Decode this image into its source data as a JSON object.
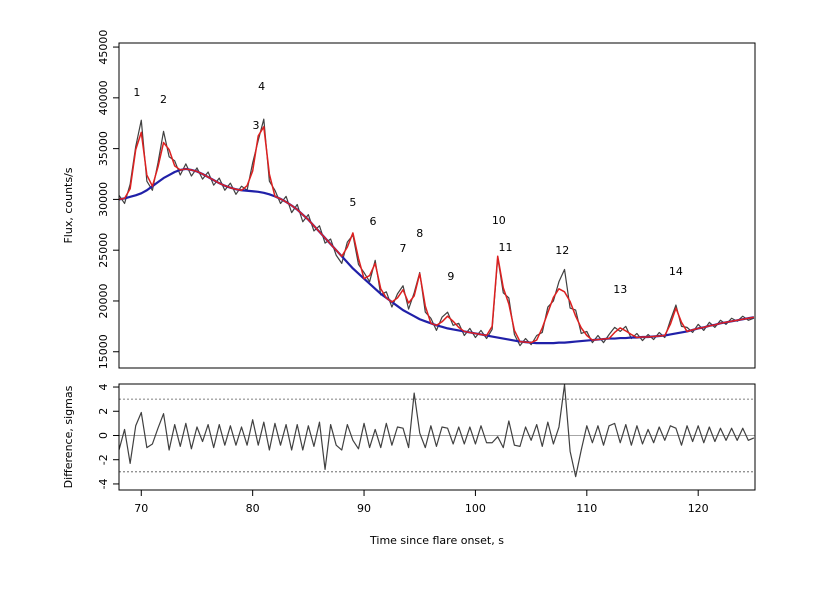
{
  "chart_data": [
    {
      "type": "line",
      "ylabel": "Flux, counts/s",
      "xlim": [
        68,
        125.1
      ],
      "ylim": [
        13400,
        45400
      ],
      "yticks": [
        15000,
        20000,
        25000,
        30000,
        35000,
        40000,
        45000
      ],
      "x": [
        68,
        68.5,
        69,
        69.5,
        70,
        70.5,
        71,
        71.5,
        72,
        72.5,
        73,
        73.5,
        74,
        74.5,
        75,
        75.5,
        76,
        76.5,
        77,
        77.5,
        78,
        78.5,
        79,
        79.5,
        80,
        80.5,
        81,
        81.5,
        82,
        82.5,
        83,
        83.5,
        84,
        84.5,
        85,
        85.5,
        86,
        86.5,
        87,
        87.5,
        88,
        88.5,
        89,
        89.5,
        90,
        90.5,
        91,
        91.5,
        92,
        92.5,
        93,
        93.5,
        94,
        94.5,
        95,
        95.5,
        96,
        96.5,
        97,
        97.5,
        98,
        98.5,
        99,
        99.5,
        100,
        100.5,
        101,
        101.5,
        102,
        102.5,
        103,
        103.5,
        104,
        104.5,
        105,
        105.5,
        106,
        106.5,
        107,
        107.5,
        108,
        108.5,
        109,
        109.5,
        110,
        110.5,
        111,
        111.5,
        112,
        112.5,
        113,
        113.5,
        114,
        114.5,
        115,
        115.5,
        116,
        116.5,
        117,
        117.5,
        118,
        118.5,
        119,
        119.5,
        120,
        120.5,
        121,
        121.5,
        122,
        122.5,
        123,
        123.5,
        124,
        124.5,
        125
      ],
      "series": [
        {
          "color": "#404040",
          "width": 1.2,
          "values": [
            30400,
            29600,
            31500,
            35200,
            37800,
            31800,
            30900,
            33600,
            36700,
            34200,
            33800,
            32400,
            33500,
            32300,
            33100,
            32000,
            32700,
            31400,
            32100,
            30900,
            31600,
            30500,
            31300,
            30900,
            33600,
            35800,
            37900,
            31800,
            30900,
            29600,
            30300,
            28700,
            29500,
            27800,
            28500,
            26900,
            27400,
            25700,
            26100,
            24500,
            23700,
            25800,
            26500,
            23600,
            22800,
            21900,
            24000,
            20600,
            20900,
            19400,
            20700,
            21500,
            19200,
            20800,
            22800,
            18900,
            18300,
            17100,
            18400,
            18900,
            17600,
            17800,
            16600,
            17300,
            16400,
            17100,
            16300,
            17200,
            24300,
            20800,
            20300,
            16700,
            15600,
            16300,
            15700,
            16600,
            16900,
            19400,
            20000,
            21900,
            23100,
            19300,
            19100,
            16800,
            17000,
            15900,
            16600,
            15900,
            16700,
            17400,
            17000,
            17500,
            16300,
            16800,
            16100,
            16700,
            16200,
            16900,
            16400,
            18100,
            19600,
            17500,
            17400,
            16900,
            17700,
            17100,
            17900,
            17400,
            18100,
            17700,
            18300,
            18000,
            18500,
            18100,
            18300
          ]
        },
        {
          "color": "#2020a8",
          "width": 2.2,
          "values": [
            30000,
            30100,
            30250,
            30400,
            30600,
            30900,
            31300,
            31700,
            32100,
            32400,
            32700,
            32900,
            33000,
            32900,
            32750,
            32500,
            32200,
            31900,
            31600,
            31350,
            31150,
            31000,
            30900,
            30850,
            30800,
            30750,
            30650,
            30500,
            30300,
            30050,
            29750,
            29400,
            29000,
            28500,
            28000,
            27400,
            26800,
            26200,
            25600,
            25000,
            24400,
            23800,
            23200,
            22700,
            22200,
            21700,
            21200,
            20700,
            20300,
            19900,
            19500,
            19100,
            18800,
            18500,
            18200,
            18000,
            17800,
            17600,
            17450,
            17300,
            17200,
            17100,
            17000,
            16900,
            16800,
            16700,
            16600,
            16500,
            16400,
            16300,
            16200,
            16100,
            16000,
            15950,
            15900,
            15850,
            15850,
            15850,
            15850,
            15900,
            15900,
            15950,
            16000,
            16050,
            16100,
            16150,
            16200,
            16250,
            16300,
            16300,
            16350,
            16350,
            16400,
            16400,
            16450,
            16450,
            16500,
            16550,
            16600,
            16700,
            16800,
            16900,
            17000,
            17150,
            17300,
            17400,
            17550,
            17650,
            17800,
            17900,
            18000,
            18100,
            18200,
            18300,
            18400
          ]
        },
        {
          "color": "#dd2020",
          "width": 1.5,
          "values": [
            30000,
            30100,
            31050,
            34900,
            36600,
            32400,
            31300,
            33200,
            35600,
            34900,
            33300,
            32900,
            33000,
            32900,
            32750,
            32500,
            32200,
            31900,
            31600,
            31350,
            31150,
            31000,
            30900,
            31350,
            32800,
            36250,
            37150,
            32500,
            30300,
            30050,
            29750,
            29400,
            29000,
            28500,
            28000,
            27400,
            26800,
            26200,
            25600,
            25000,
            24400,
            25300,
            26700,
            24200,
            22200,
            22500,
            23700,
            21200,
            20300,
            19900,
            20300,
            21100,
            19800,
            20500,
            22700,
            19500,
            17800,
            17600,
            17950,
            18500,
            18000,
            17400,
            17000,
            16900,
            16800,
            16700,
            16600,
            17500,
            24400,
            21300,
            19700,
            17100,
            16000,
            15950,
            15900,
            16150,
            17350,
            18850,
            20350,
            21200,
            20900,
            19950,
            18500,
            17350,
            16600,
            16150,
            16200,
            16250,
            16300,
            16900,
            17350,
            17050,
            16700,
            16400,
            16450,
            16450,
            16500,
            16550,
            16600,
            17700,
            19300,
            17900,
            17000,
            17150,
            17300,
            17400,
            17550,
            17650,
            17800,
            17900,
            18000,
            18100,
            18200,
            18300,
            18400
          ]
        }
      ],
      "annotations": [
        {
          "text": "1",
          "x": 69.6,
          "y": 40180
        },
        {
          "text": "2",
          "x": 72.0,
          "y": 39490
        },
        {
          "text": "3",
          "x": 80.3,
          "y": 36930
        },
        {
          "text": "4",
          "x": 80.8,
          "y": 40770
        },
        {
          "text": "5",
          "x": 89.0,
          "y": 29350
        },
        {
          "text": "6",
          "x": 90.8,
          "y": 27480
        },
        {
          "text": "7",
          "x": 93.5,
          "y": 24830
        },
        {
          "text": "8",
          "x": 95.0,
          "y": 26300
        },
        {
          "text": "9",
          "x": 97.8,
          "y": 22070
        },
        {
          "text": "10",
          "x": 102.1,
          "y": 27580
        },
        {
          "text": "11",
          "x": 102.7,
          "y": 24930
        },
        {
          "text": "12",
          "x": 107.8,
          "y": 24630
        },
        {
          "text": "13",
          "x": 113.0,
          "y": 20790
        },
        {
          "text": "14",
          "x": 118.0,
          "y": 22560
        }
      ]
    },
    {
      "type": "line",
      "ylabel": "Difference, sigmas",
      "xlabel": "Time since flare onset, s",
      "xlim": [
        68,
        125.1
      ],
      "ylim": [
        -4.5,
        4.25
      ],
      "xticks": [
        70,
        80,
        90,
        100,
        110,
        120
      ],
      "yticks": [
        -4,
        -2,
        0,
        2,
        4
      ],
      "hlines": [
        {
          "value": -3,
          "dash": true
        },
        {
          "value": 0,
          "dash": false
        },
        {
          "value": 3,
          "dash": true
        }
      ],
      "x": [
        68,
        68.5,
        69,
        69.5,
        70,
        70.5,
        71,
        71.5,
        72,
        72.5,
        73,
        73.5,
        74,
        74.5,
        75,
        75.5,
        76,
        76.5,
        77,
        77.5,
        78,
        78.5,
        79,
        79.5,
        80,
        80.5,
        81,
        81.5,
        82,
        82.5,
        83,
        83.5,
        84,
        84.5,
        85,
        85.5,
        86,
        86.5,
        87,
        87.5,
        88,
        88.5,
        89,
        89.5,
        90,
        90.5,
        91,
        91.5,
        92,
        92.5,
        93,
        93.5,
        94,
        94.5,
        95,
        95.5,
        96,
        96.5,
        97,
        97.5,
        98,
        98.5,
        99,
        99.5,
        100,
        100.5,
        101,
        101.5,
        102,
        102.5,
        103,
        103.5,
        104,
        104.5,
        105,
        105.5,
        106,
        106.5,
        107,
        107.5,
        108,
        108.5,
        109,
        109.5,
        110,
        110.5,
        111,
        111.5,
        112,
        112.5,
        113,
        113.5,
        114,
        114.5,
        115,
        115.5,
        116,
        116.5,
        117,
        117.5,
        118,
        118.5,
        119,
        119.5,
        120,
        120.5,
        121,
        121.5,
        122,
        122.5,
        123,
        123.5,
        124,
        124.5,
        125
      ],
      "series": [
        {
          "color": "#404040",
          "width": 1.2,
          "values": [
            -1.2,
            0.5,
            -2.3,
            0.8,
            1.9,
            -1.0,
            -0.7,
            0.6,
            1.8,
            -1.2,
            0.9,
            -0.9,
            1.0,
            -1.1,
            0.7,
            -0.5,
            0.9,
            -1.0,
            0.9,
            -0.8,
            0.8,
            -0.8,
            0.7,
            -0.8,
            1.3,
            -0.8,
            1.1,
            -1.2,
            1.0,
            -0.8,
            0.9,
            -1.2,
            0.9,
            -1.2,
            0.8,
            -0.9,
            1.1,
            -2.8,
            0.9,
            -0.8,
            -1.2,
            0.9,
            -0.4,
            -1.1,
            1.0,
            -1.0,
            0.5,
            -1.0,
            1.0,
            -0.8,
            0.7,
            0.6,
            -1.0,
            3.5,
            0.2,
            -1.0,
            0.8,
            -0.9,
            0.7,
            0.6,
            -0.7,
            0.7,
            -0.7,
            0.7,
            -0.7,
            0.8,
            -0.6,
            -0.6,
            -0.1,
            -1.0,
            1.2,
            -0.8,
            -0.9,
            0.7,
            -0.4,
            0.9,
            -0.9,
            1.1,
            -0.7,
            0.7,
            4.2,
            -1.3,
            -3.4,
            -1.2,
            0.8,
            -0.6,
            0.8,
            -0.8,
            0.8,
            1.0,
            -0.6,
            0.9,
            -0.8,
            0.8,
            -0.7,
            0.5,
            -0.6,
            0.7,
            -0.4,
            0.8,
            0.6,
            -0.8,
            0.8,
            -0.5,
            0.8,
            -0.6,
            0.7,
            -0.5,
            0.6,
            -0.4,
            0.6,
            -0.4,
            0.6,
            -0.4,
            -0.2
          ]
        }
      ]
    }
  ]
}
